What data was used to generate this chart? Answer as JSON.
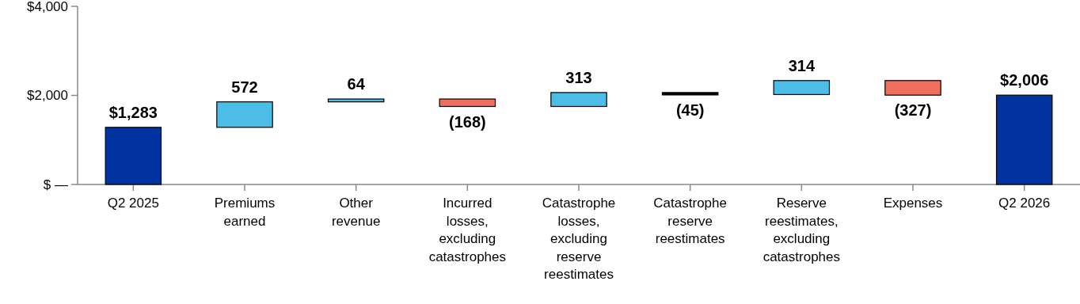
{
  "chart_data": {
    "type": "bar",
    "categories": [
      "Q2 2025",
      "Premiums earned",
      "Other revenue",
      "Incurred losses, excluding catastrophes",
      "Catastrophe losses, excluding reserve reestimates",
      "Catastrophe reserve reestimates",
      "Reserve reestimates, excluding catastrophes",
      "Expenses",
      "Q2 2026"
    ],
    "values": [
      1283,
      572,
      64,
      -168,
      313,
      -45,
      314,
      -327,
      2006
    ],
    "base": [
      0,
      1283,
      1855,
      1919,
      1751,
      2064,
      2019,
      2333,
      0
    ],
    "colors": [
      "#0033a0",
      "#4bbde6",
      "#4bbde6",
      "#ef6f5e",
      "#4bbde6",
      "#000000",
      "#4bbde6",
      "#ef6f5e",
      "#0033a0"
    ],
    "value_labels": [
      "$1,283",
      "572",
      "64",
      "(168)",
      "313",
      "(45)",
      "314",
      "(327)",
      "$2,006"
    ],
    "ylim": [
      0,
      4000
    ],
    "yticks": [
      {
        "value": 0,
        "label": "$ —"
      },
      {
        "value": 2000,
        "label": "$2,000"
      },
      {
        "value": 4000,
        "label": "$4,000"
      }
    ],
    "grid": false
  }
}
